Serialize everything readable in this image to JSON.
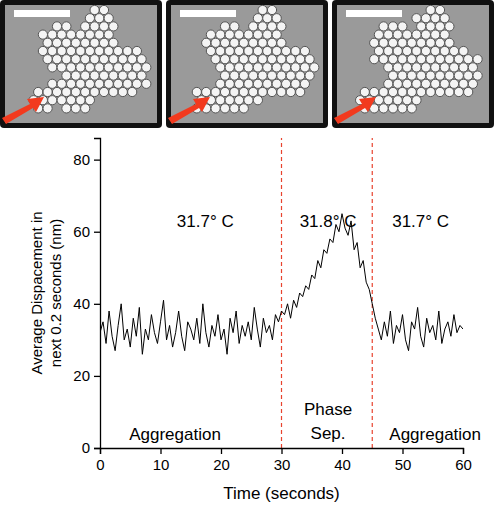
{
  "chart_data": {
    "type": "line",
    "x_label": "Time (seconds)",
    "y_label": "Average Dispacement in next 0.2 seconds (nm)",
    "xlim": [
      0,
      60
    ],
    "xticks": [
      0,
      10,
      20,
      30,
      40,
      50,
      60
    ],
    "ylim": [
      0,
      86
    ],
    "yticks": [
      0,
      20,
      40,
      60,
      80
    ],
    "x": [
      0,
      0.5,
      1,
      1.5,
      2,
      2.5,
      3,
      3.5,
      4,
      4.5,
      5,
      5.5,
      6,
      6.5,
      7,
      7.5,
      8,
      8.5,
      9,
      9.5,
      10,
      10.5,
      11,
      11.5,
      12,
      12.5,
      13,
      13.5,
      14,
      14.5,
      15,
      15.5,
      16,
      16.5,
      17,
      17.5,
      18,
      18.5,
      19,
      19.5,
      20,
      20.5,
      21,
      21.5,
      22,
      22.5,
      23,
      23.5,
      24,
      24.5,
      25,
      25.5,
      26,
      26.5,
      27,
      27.5,
      28,
      28.5,
      29,
      29.5,
      30,
      30.5,
      31,
      31.5,
      32,
      32.5,
      33,
      33.5,
      34,
      34.5,
      35,
      35.5,
      36,
      36.5,
      37,
      37.5,
      38,
      38.5,
      39,
      39.5,
      40,
      40.5,
      41,
      41.5,
      42,
      42.5,
      43,
      43.5,
      44,
      44.5,
      45,
      45.5,
      46,
      46.5,
      47,
      47.5,
      48,
      48.5,
      49,
      49.5,
      50,
      50.5,
      51,
      51.5,
      52,
      52.5,
      53,
      53.5,
      54,
      54.5,
      55,
      55.5,
      56,
      56.5,
      57,
      57.5,
      58,
      58.5,
      59,
      59.5,
      60
    ],
    "series": [
      {
        "color": "#000000",
        "values": [
          32,
          35,
          29,
          38,
          31,
          27,
          34,
          40,
          30,
          33,
          28,
          36,
          31,
          39,
          26,
          33,
          30,
          37,
          32,
          29,
          35,
          41,
          30,
          34,
          28,
          32,
          38,
          31,
          27,
          35,
          33,
          30,
          36,
          29,
          40,
          32,
          28,
          34,
          31,
          37,
          30,
          33,
          26,
          36,
          32,
          38,
          29,
          34,
          31,
          35,
          30,
          39,
          33,
          28,
          36,
          32,
          34,
          30,
          37,
          35,
          38,
          37,
          40,
          36,
          41,
          39,
          43,
          42,
          45,
          44,
          48,
          47,
          52,
          50,
          55,
          54,
          58,
          57,
          62,
          60,
          65,
          61,
          59,
          63,
          55,
          57,
          50,
          52,
          46,
          44,
          40,
          36,
          33,
          30,
          35,
          31,
          38,
          29,
          34,
          32,
          37,
          30,
          27,
          35,
          33,
          39,
          31,
          28,
          36,
          32,
          34,
          30,
          38,
          29,
          33,
          35,
          31,
          37,
          32,
          34,
          33
        ]
      }
    ],
    "vertical_lines": {
      "values": [
        30,
        45
      ],
      "color": "#e8432e",
      "line_style": "dashed"
    },
    "annotations": [
      {
        "text": "31.7° C",
        "x": 17.4,
        "y": 63
      },
      {
        "text": "31.8° C",
        "x": 37.7,
        "y": 63
      },
      {
        "text": "31.7° C",
        "x": 53,
        "y": 63
      },
      {
        "text": "Aggregation",
        "x": 12.4,
        "y": 4
      },
      {
        "text": "Phase Sep.",
        "x": 37.7,
        "y": 7.5
      },
      {
        "text": "Aggregation",
        "x": 55.4,
        "y": 4
      }
    ]
  }
}
